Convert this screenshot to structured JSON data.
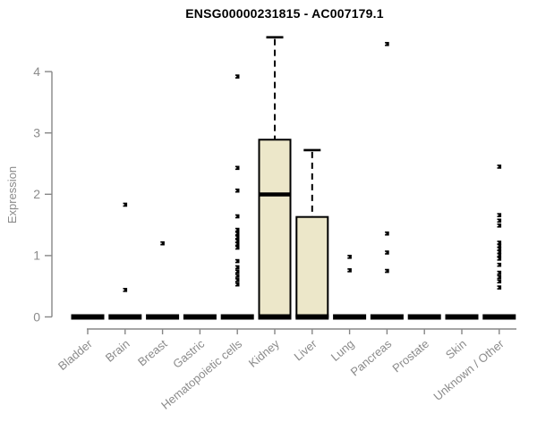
{
  "chart_data": {
    "type": "boxplot",
    "title": "ENSG00000231815 - AC007179.1",
    "ylabel": "Expression",
    "xlabel": "",
    "ylim": [
      0,
      4.65
    ],
    "yticks": [
      0,
      1,
      2,
      3,
      4
    ],
    "grid": false,
    "legend": null,
    "categories": [
      "Bladder",
      "Brain",
      "Breast",
      "Gastric",
      "Hematopoietic cells",
      "Kidney",
      "Liver",
      "Lung",
      "Pancreas",
      "Prostate",
      "Skin",
      "Unknown / Other"
    ],
    "boxes": [
      {
        "category": "Bladder",
        "q1": 0,
        "median": 0,
        "q3": 0,
        "whisker_low": 0,
        "whisker_high": 0,
        "outliers": []
      },
      {
        "category": "Brain",
        "q1": 0,
        "median": 0,
        "q3": 0,
        "whisker_low": 0,
        "whisker_high": 0,
        "outliers": [
          1.83,
          0.44
        ]
      },
      {
        "category": "Breast",
        "q1": 0,
        "median": 0,
        "q3": 0,
        "whisker_low": 0,
        "whisker_high": 0,
        "outliers": [
          1.2
        ]
      },
      {
        "category": "Gastric",
        "q1": 0,
        "median": 0,
        "q3": 0,
        "whisker_low": 0,
        "whisker_high": 0,
        "outliers": []
      },
      {
        "category": "Hematopoietic cells",
        "q1": 0,
        "median": 0,
        "q3": 0,
        "whisker_low": 0,
        "whisker_high": 0,
        "outliers": [
          3.92,
          2.43,
          2.06,
          1.64,
          1.42,
          1.36,
          1.3,
          1.24,
          1.19,
          1.13,
          0.91,
          0.81,
          0.74,
          0.67,
          0.6,
          0.53
        ]
      },
      {
        "category": "Kidney",
        "q1": 0,
        "median": 1.99,
        "q3": 2.89,
        "whisker_low": 0,
        "whisker_high": 4.56,
        "outliers": []
      },
      {
        "category": "Liver",
        "q1": 0,
        "median": 0,
        "q3": 1.63,
        "whisker_low": 0,
        "whisker_high": 2.72,
        "outliers": []
      },
      {
        "category": "Lung",
        "q1": 0,
        "median": 0,
        "q3": 0,
        "whisker_low": 0,
        "whisker_high": 0,
        "outliers": [
          0.98,
          0.76
        ]
      },
      {
        "category": "Pancreas",
        "q1": 0,
        "median": 0,
        "q3": 0,
        "whisker_low": 0,
        "whisker_high": 0,
        "outliers": [
          4.45,
          1.36,
          1.05,
          0.75
        ]
      },
      {
        "category": "Prostate",
        "q1": 0,
        "median": 0,
        "q3": 0,
        "whisker_low": 0,
        "whisker_high": 0,
        "outliers": []
      },
      {
        "category": "Skin",
        "q1": 0,
        "median": 0,
        "q3": 0,
        "whisker_low": 0,
        "whisker_high": 0,
        "outliers": []
      },
      {
        "category": "Unknown / Other",
        "q1": 0,
        "median": 0,
        "q3": 0,
        "whisker_low": 0,
        "whisker_high": 0,
        "outliers": [
          2.45,
          1.66,
          1.57,
          1.49,
          1.21,
          1.16,
          1.11,
          1.06,
          1.01,
          0.95,
          0.85,
          0.72,
          0.65,
          0.58,
          0.48
        ]
      }
    ],
    "colors": {
      "box_fill": "#ECE7C9",
      "box_stroke": "#000000",
      "median": "#000000",
      "whisker": "#000000",
      "outlier": "#000000",
      "axis": "#878787",
      "tick_label": "#8B8B8B",
      "title": "#000000"
    }
  }
}
